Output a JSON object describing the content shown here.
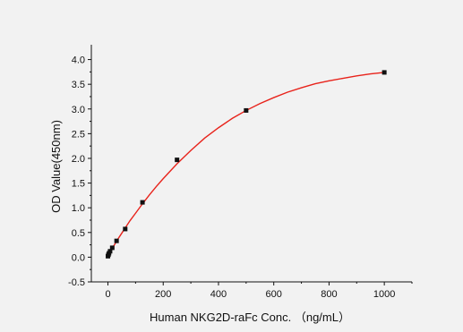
{
  "chart_data": {
    "type": "scatter",
    "title": "",
    "xlabel": "Human NKG2D-raFc Conc. （ng/mL）",
    "ylabel": "OD Value(450nm)",
    "xlim": [
      -60,
      1100
    ],
    "ylim": [
      -0.5,
      4.3
    ],
    "x_ticks": [
      0,
      200,
      400,
      600,
      800,
      1000
    ],
    "x_tick_labels": [
      "0",
      "200",
      "400",
      "600",
      "800",
      "1000"
    ],
    "y_ticks": [
      -0.5,
      0.0,
      0.5,
      1.0,
      1.5,
      2.0,
      2.5,
      3.0,
      3.5,
      4.0
    ],
    "y_tick_labels": [
      "-0.5",
      "0.0",
      "0.5",
      "1.0",
      "1.5",
      "2.0",
      "2.5",
      "3.0",
      "3.5",
      "4.0"
    ],
    "grid": false,
    "legend": "none",
    "series": [
      {
        "marker": "square",
        "color": "#111111",
        "x": [
          0,
          1.95,
          3.9,
          7.8,
          15.6,
          31.25,
          62.5,
          125,
          250,
          500,
          1000
        ],
        "y": [
          0.02,
          0.05,
          0.08,
          0.12,
          0.19,
          0.33,
          0.57,
          1.11,
          1.97,
          2.97,
          3.74
        ]
      }
    ],
    "fit_curve": {
      "color": "#e8231b",
      "x": [
        0,
        5,
        10,
        20,
        30,
        40,
        60,
        80,
        100,
        125,
        150,
        175,
        200,
        250,
        300,
        350,
        400,
        450,
        500,
        550,
        600,
        650,
        700,
        750,
        800,
        850,
        900,
        950,
        1000
      ],
      "y": [
        0.02,
        0.07,
        0.12,
        0.22,
        0.31,
        0.4,
        0.57,
        0.74,
        0.89,
        1.08,
        1.26,
        1.43,
        1.59,
        1.89,
        2.16,
        2.41,
        2.62,
        2.81,
        2.97,
        3.11,
        3.23,
        3.34,
        3.43,
        3.51,
        3.57,
        3.62,
        3.67,
        3.71,
        3.74
      ]
    }
  }
}
